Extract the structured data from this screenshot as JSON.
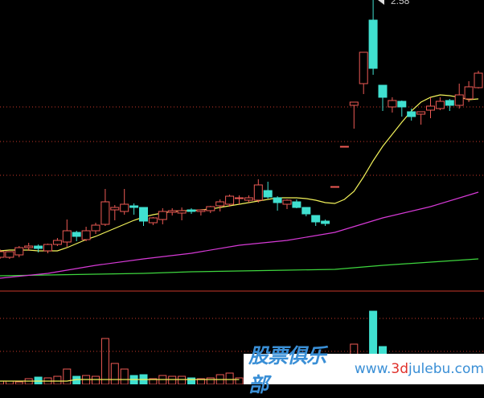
{
  "chart_data": {
    "type": "candlestick",
    "title": "",
    "price_label": "2.58",
    "colors": {
      "up": "#ee5a55",
      "down": "#40e0d0",
      "grid": "#c8372a",
      "ma1": "#f2f25a",
      "ma2": "#d63ad6",
      "ma3": "#3ed63e",
      "background": "#000000"
    },
    "price_range": [
      1.15,
      2.58
    ],
    "grid_lines_price": [
      2.048,
      1.876,
      1.708
    ],
    "candles_ohlc": [
      [
        1.3,
        1.34,
        1.292,
        1.328
      ],
      [
        1.3,
        1.328,
        1.292,
        1.328
      ],
      [
        1.312,
        1.356,
        1.3,
        1.348
      ],
      [
        1.348,
        1.372,
        1.332,
        1.356
      ],
      [
        1.356,
        1.364,
        1.324,
        1.344
      ],
      [
        1.332,
        1.368,
        1.32,
        1.364
      ],
      [
        1.364,
        1.396,
        1.356,
        1.384
      ],
      [
        1.376,
        1.488,
        1.352,
        1.432
      ],
      [
        1.424,
        1.432,
        1.38,
        1.404
      ],
      [
        1.388,
        1.452,
        1.38,
        1.432
      ],
      [
        1.432,
        1.472,
        1.416,
        1.46
      ],
      [
        1.464,
        1.64,
        1.456,
        1.576
      ],
      [
        1.536,
        1.56,
        1.484,
        1.548
      ],
      [
        1.528,
        1.64,
        1.512,
        1.564
      ],
      [
        1.556,
        1.568,
        1.512,
        1.548
      ],
      [
        1.548,
        1.548,
        1.456,
        1.48
      ],
      [
        1.472,
        1.5,
        1.46,
        1.496
      ],
      [
        1.488,
        1.544,
        1.464,
        1.528
      ],
      [
        1.524,
        1.544,
        1.508,
        1.532
      ],
      [
        1.52,
        1.548,
        1.484,
        1.532
      ],
      [
        1.536,
        1.544,
        1.516,
        1.528
      ],
      [
        1.528,
        1.536,
        1.508,
        1.536
      ],
      [
        1.532,
        1.556,
        1.52,
        1.552
      ],
      [
        1.556,
        1.588,
        1.528,
        1.576
      ],
      [
        1.564,
        1.612,
        1.552,
        1.604
      ],
      [
        1.592,
        1.608,
        1.564,
        1.596
      ],
      [
        1.584,
        1.608,
        1.572,
        1.596
      ],
      [
        1.584,
        1.688,
        1.572,
        1.66
      ],
      [
        1.632,
        1.676,
        1.592,
        1.6
      ],
      [
        1.596,
        1.604,
        1.532,
        1.572
      ],
      [
        1.564,
        1.588,
        1.54,
        1.584
      ],
      [
        1.576,
        1.588,
        1.544,
        1.548
      ],
      [
        1.548,
        1.548,
        1.504,
        1.516
      ],
      [
        1.508,
        1.508,
        1.456,
        1.476
      ],
      [
        1.48,
        1.488,
        1.456,
        1.468
      ],
      [
        1.648,
        1.652,
        1.648,
        1.652
      ],
      [
        1.848,
        1.852,
        1.848,
        1.852
      ],
      [
        2.056,
        2.072,
        1.94,
        2.072
      ],
      [
        2.164,
        2.32,
        2.112,
        2.32
      ],
      [
        2.48,
        2.58,
        2.208,
        2.24
      ],
      [
        2.156,
        2.156,
        2.028,
        2.096
      ],
      [
        2.048,
        2.096,
        2.02,
        2.08
      ],
      [
        2.076,
        2.08,
        2.0,
        2.048
      ],
      [
        2.024,
        2.04,
        1.98,
        2.0
      ],
      [
        2.012,
        2.024,
        1.96,
        2.024
      ],
      [
        2.032,
        2.096,
        1.992,
        2.052
      ],
      [
        2.04,
        2.096,
        2.032,
        2.076
      ],
      [
        2.08,
        2.088,
        2.028,
        2.056
      ],
      [
        2.056,
        2.164,
        2.04,
        2.108
      ],
      [
        2.088,
        2.176,
        2.072,
        2.148
      ],
      [
        2.144,
        2.228,
        2.14,
        2.216
      ]
    ],
    "ma_short": [
      1.332,
      1.336,
      1.336,
      1.336,
      1.332,
      1.332,
      1.332,
      1.348,
      1.368,
      1.388,
      1.404,
      1.424,
      1.444,
      1.464,
      1.484,
      1.5,
      1.512,
      1.52,
      1.528,
      1.532,
      1.532,
      1.536,
      1.54,
      1.548,
      1.556,
      1.564,
      1.572,
      1.58,
      1.588,
      1.596,
      1.596,
      1.596,
      1.592,
      1.584,
      1.572,
      1.568,
      1.588,
      1.628,
      1.7,
      1.78,
      1.852,
      1.912,
      1.972,
      2.028,
      2.072,
      2.096,
      2.108,
      2.104,
      2.096,
      2.084,
      2.088
    ],
    "ma_mid": {
      "index": [
        0,
        5,
        10,
        15,
        20,
        25,
        30,
        35,
        40,
        45,
        50
      ],
      "values": [
        1.196,
        1.22,
        1.26,
        1.292,
        1.32,
        1.36,
        1.384,
        1.424,
        1.496,
        1.552,
        1.624
      ]
    },
    "ma_long": {
      "index": [
        0,
        5,
        10,
        15,
        20,
        25,
        30,
        35,
        40,
        45,
        50
      ],
      "values": [
        1.208,
        1.212,
        1.216,
        1.22,
        1.228,
        1.232,
        1.236,
        1.24,
        1.26,
        1.276,
        1.292
      ]
    },
    "volume": [
      4,
      4,
      3,
      7,
      9,
      8,
      10,
      19,
      10,
      11,
      10,
      57,
      26,
      19,
      11,
      12,
      7,
      11,
      10,
      10,
      8,
      7,
      8,
      12,
      14,
      8,
      null,
      null,
      null,
      null,
      null,
      null,
      null,
      null,
      null,
      null,
      null,
      50,
      null,
      91,
      47,
      null,
      null,
      null,
      null,
      null,
      null,
      null,
      null,
      null,
      null
    ],
    "volume_ma": [
      4,
      4,
      4,
      4,
      4,
      4,
      4,
      4,
      6,
      6,
      6,
      6,
      6,
      6,
      6,
      6,
      6,
      6,
      6,
      6,
      6,
      6,
      6,
      6,
      6,
      6
    ],
    "volume_range": [
      0,
      116
    ],
    "volume_grid": [
      82,
      41
    ]
  },
  "watermark": {
    "cn": "股票俱乐部",
    "url_prefix": "www.",
    "url_red": "3d",
    "url_suffix": "julebu.com"
  }
}
